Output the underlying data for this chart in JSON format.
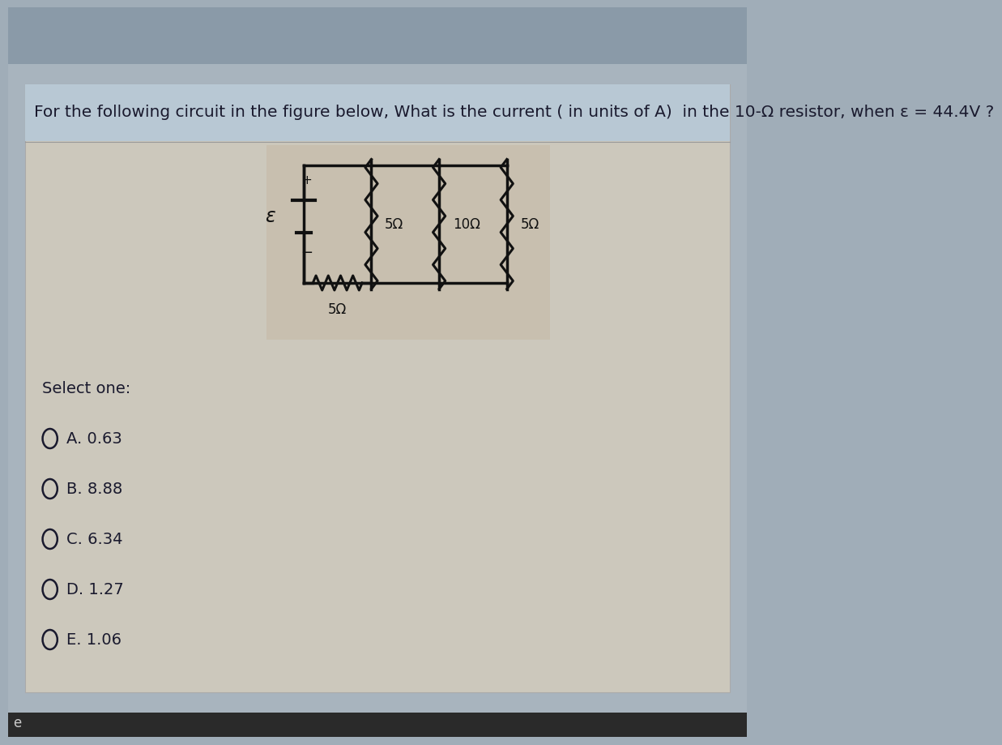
{
  "title": "For the following circuit in the figure below, What is the current ( in units of A)  in the 10-Ω resistor, when ε = 44.4V ?",
  "outer_bg": "#a0adb8",
  "inner_bg": "#b8c4cc",
  "panel_bg": "#c8c0b0",
  "circuit_bg": "#c8bfaf",
  "title_band_bg": "#c0ccd4",
  "select_one": "Select one:",
  "options": [
    "A. 0.63",
    "B. 8.88",
    "C. 6.34",
    "D. 1.27",
    "E. 1.06"
  ],
  "epsilon_label": "ε",
  "r1_label": "5Ω",
  "r2_label": "10Ω",
  "r3_label": "5Ω",
  "r4_label": "5Ω",
  "text_color": "#1a1a2e",
  "col": "#111111",
  "footer_text": "e"
}
